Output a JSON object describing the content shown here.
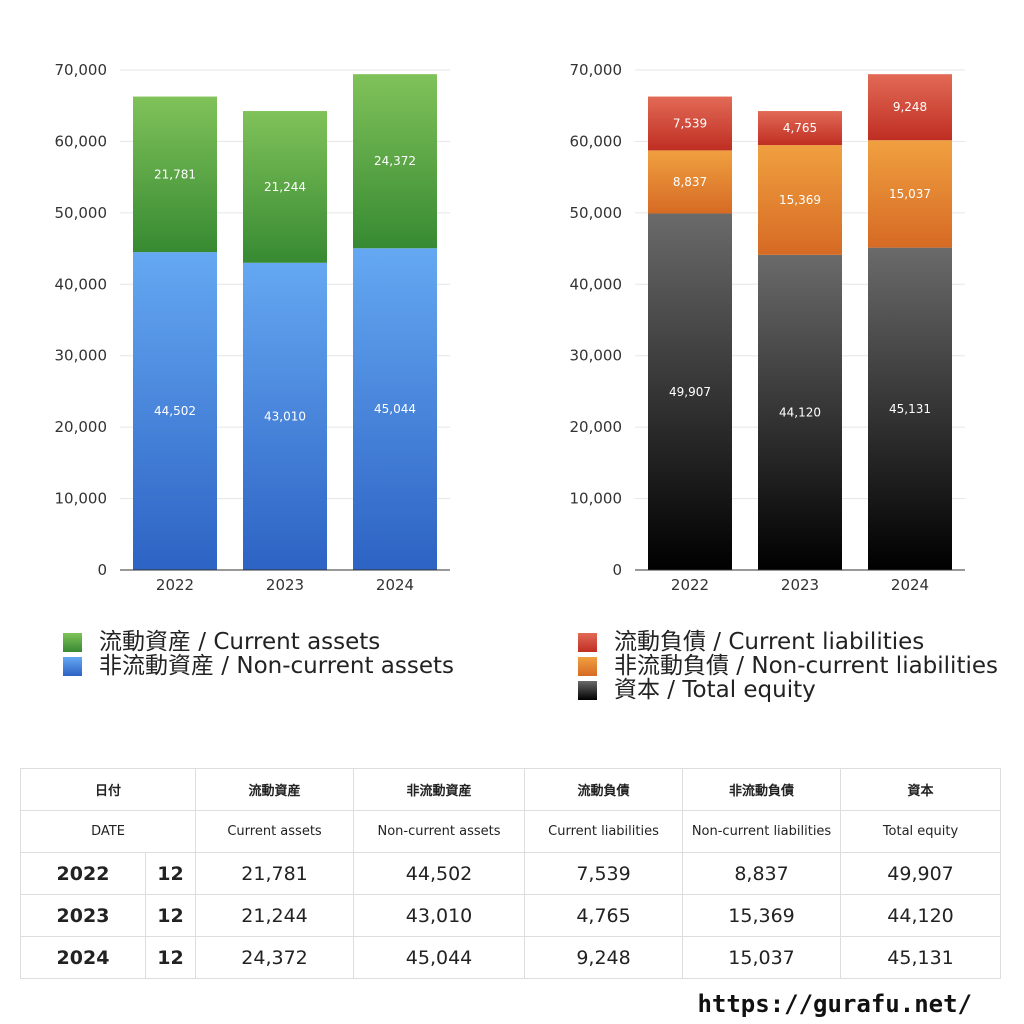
{
  "chart_data": [
    {
      "type": "bar",
      "stacked": true,
      "categories": [
        "2022",
        "2023",
        "2024"
      ],
      "ylim": [
        0,
        70000
      ],
      "yticks": [
        0,
        10000,
        20000,
        30000,
        40000,
        50000,
        60000,
        70000
      ],
      "ytick_labels": [
        "0",
        "10,000",
        "20,000",
        "30,000",
        "40,000",
        "50,000",
        "60,000",
        "70,000"
      ],
      "grid": true,
      "legend_position": "bottom",
      "series": [
        {
          "name": "非流動資産 / Non-current assets",
          "values": [
            44502,
            43010,
            45044
          ],
          "labels": [
            "44,502",
            "43,010",
            "45,044"
          ],
          "color_top": "#65a8f2",
          "color_bottom": "#2d63c4"
        },
        {
          "name": "流動資産 / Current assets",
          "values": [
            21781,
            21244,
            24372
          ],
          "labels": [
            "21,781",
            "21,244",
            "24,372"
          ],
          "color_top": "#80c25a",
          "color_bottom": "#378a32"
        }
      ]
    },
    {
      "type": "bar",
      "stacked": true,
      "categories": [
        "2022",
        "2023",
        "2024"
      ],
      "ylim": [
        0,
        70000
      ],
      "yticks": [
        0,
        10000,
        20000,
        30000,
        40000,
        50000,
        60000,
        70000
      ],
      "ytick_labels": [
        "0",
        "10,000",
        "20,000",
        "30,000",
        "40,000",
        "50,000",
        "60,000",
        "70,000"
      ],
      "grid": true,
      "legend_position": "bottom",
      "series": [
        {
          "name": "資本 / Total equity",
          "values": [
            49907,
            44120,
            45131
          ],
          "labels": [
            "49,907",
            "44,120",
            "45,131"
          ],
          "color_top": "#6a6a6a",
          "color_bottom": "#000000"
        },
        {
          "name": "非流動負債 / Non-current liabilities",
          "values": [
            8837,
            15369,
            15037
          ],
          "labels": [
            "8,837",
            "15,369",
            "15,037"
          ],
          "color_top": "#f0a040",
          "color_bottom": "#d66a24"
        },
        {
          "name": "流動負債 / Current liabilities",
          "values": [
            7539,
            4765,
            9248
          ],
          "labels": [
            "7,539",
            "4,765",
            "9,248"
          ],
          "color_top": "#e26a56",
          "color_bottom": "#bf2e22"
        }
      ]
    }
  ],
  "legends": {
    "assets": [
      {
        "label": "流動資産 / Current assets",
        "color_top": "#80c25a",
        "color_bottom": "#378a32"
      },
      {
        "label": "非流動資産 / Non-current assets",
        "color_top": "#65a8f2",
        "color_bottom": "#2d63c4"
      }
    ],
    "liabilities": [
      {
        "label": "流動負債 / Current liabilities",
        "color_top": "#e26a56",
        "color_bottom": "#bf2e22"
      },
      {
        "label": "非流動負債 / Non-current liabilities",
        "color_top": "#f0a040",
        "color_bottom": "#d66a24"
      },
      {
        "label": "資本 / Total equity",
        "color_top": "#6a6a6a",
        "color_bottom": "#000000"
      }
    ]
  },
  "table": {
    "header_jp": {
      "date": "日付",
      "current_assets": "流動資産",
      "noncurrent_assets": "非流動資産",
      "current_liabilities": "流動負債",
      "noncurrent_liabilities": "非流動負債",
      "equity": "資本"
    },
    "header_en": {
      "date": "DATE",
      "current_assets": "Current assets",
      "noncurrent_assets": "Non-current assets",
      "current_liabilities": "Current liabilities",
      "noncurrent_liabilities": "Non-current liabilities",
      "equity": "Total equity"
    },
    "rows": [
      {
        "year": "2022",
        "month": "12",
        "current_assets": "21,781",
        "noncurrent_assets": "44,502",
        "current_liabilities": "7,539",
        "noncurrent_liabilities": "8,837",
        "equity": "49,907"
      },
      {
        "year": "2023",
        "month": "12",
        "current_assets": "21,244",
        "noncurrent_assets": "43,010",
        "current_liabilities": "4,765",
        "noncurrent_liabilities": "15,369",
        "equity": "44,120"
      },
      {
        "year": "2024",
        "month": "12",
        "current_assets": "24,372",
        "noncurrent_assets": "45,044",
        "current_liabilities": "9,248",
        "noncurrent_liabilities": "15,037",
        "equity": "45,131"
      }
    ]
  },
  "footer": {
    "url": "https://gurafu.net/"
  }
}
